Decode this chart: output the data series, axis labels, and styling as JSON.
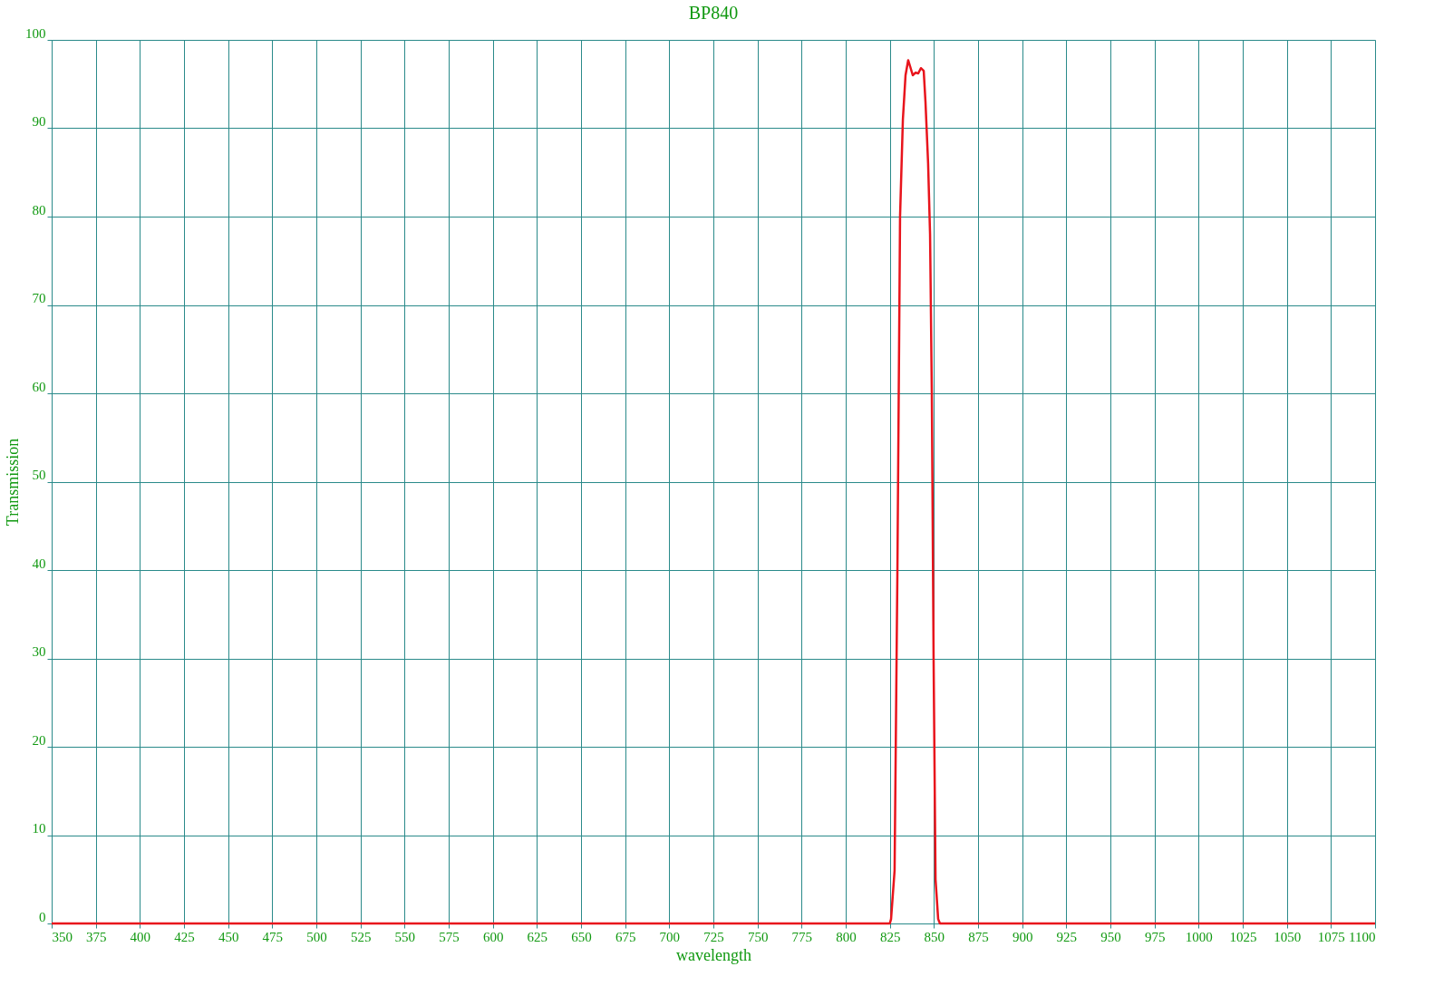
{
  "chart_data": {
    "type": "line",
    "title": "BP840",
    "xlabel": "wavelength",
    "ylabel": "Transmission",
    "xlim": [
      350,
      1100
    ],
    "ylim": [
      0,
      100
    ],
    "xticks": [
      350,
      375,
      400,
      425,
      450,
      475,
      500,
      525,
      550,
      575,
      600,
      625,
      650,
      675,
      700,
      725,
      750,
      775,
      800,
      825,
      850,
      875,
      900,
      925,
      950,
      975,
      1000,
      1025,
      1050,
      1075,
      1100
    ],
    "yticks": [
      0,
      10,
      20,
      30,
      40,
      50,
      60,
      70,
      80,
      90,
      100
    ],
    "grid": true,
    "marker": "none",
    "line_style": "solid",
    "series": [
      {
        "color": "#e8141c",
        "x": [
          350,
          825,
          825.7,
          827.7,
          829.3,
          830.8,
          832.4,
          833.9,
          835.4,
          836.5,
          838.0,
          839.6,
          841.1,
          842.6,
          844.2,
          845.2,
          846.7,
          847.8,
          848.8,
          849.8,
          850.9,
          852.4,
          853.4,
          1100
        ],
        "values": [
          0,
          0,
          0.5,
          6,
          40,
          80,
          91,
          96,
          97.7,
          97,
          96,
          96.3,
          96.2,
          96.8,
          96.5,
          93,
          86,
          78,
          60,
          30,
          5,
          0.5,
          0,
          0
        ]
      }
    ]
  }
}
